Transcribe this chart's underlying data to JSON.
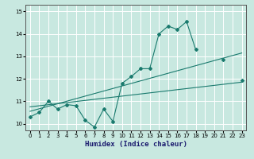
{
  "title": "",
  "xlabel": "Humidex (Indice chaleur)",
  "xlim": [
    -0.5,
    23.5
  ],
  "ylim": [
    9.7,
    15.3
  ],
  "yticks": [
    10,
    11,
    12,
    13,
    14,
    15
  ],
  "xticks": [
    0,
    1,
    2,
    3,
    4,
    5,
    6,
    7,
    8,
    9,
    10,
    11,
    12,
    13,
    14,
    15,
    16,
    17,
    18,
    19,
    20,
    21,
    22,
    23
  ],
  "bg_color": "#c8e8e0",
  "line_color": "#1a7a6e",
  "grid_color": "#ffffff",
  "line1_x": [
    0,
    1,
    2,
    3,
    4,
    5,
    6,
    7,
    8,
    9,
    10,
    11,
    12,
    13,
    14,
    15,
    16,
    17,
    18,
    19,
    20,
    21,
    22,
    23
  ],
  "line1_y": [
    10.3,
    10.5,
    11.0,
    10.65,
    10.85,
    10.8,
    10.15,
    9.85,
    10.65,
    10.1,
    11.8,
    12.1,
    12.45,
    12.45,
    14.0,
    14.35,
    14.2,
    14.55,
    13.3,
    null,
    null,
    12.85,
    null,
    11.95
  ],
  "line2_x": [
    0,
    23
  ],
  "line2_y": [
    10.55,
    13.15
  ],
  "line3_x": [
    0,
    23
  ],
  "line3_y": [
    10.75,
    11.85
  ],
  "figsize": [
    3.2,
    2.0
  ],
  "dpi": 100
}
